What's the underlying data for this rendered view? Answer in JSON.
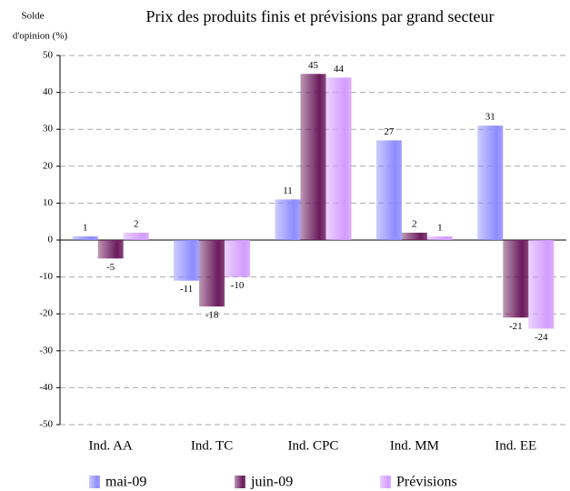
{
  "chart_data": {
    "type": "bar",
    "title": "Prix des produits finis et prévisions par grand secteur",
    "y_axis_label": [
      "Solde",
      "d'opinion (%)"
    ],
    "categories": [
      "Ind. AA",
      "Ind. TC",
      "Ind. CPC",
      "Ind. MM",
      "Ind. EE"
    ],
    "series": [
      {
        "name": "mai-09",
        "color": "#8c8cff",
        "values": [
          1,
          -11,
          11,
          27,
          31
        ]
      },
      {
        "name": "juin-09",
        "color": "#6a1a5c",
        "values": [
          -5,
          -18,
          45,
          2,
          -21
        ]
      },
      {
        "name": "Prévisions",
        "color": "#d39cff",
        "values": [
          2,
          -10,
          44,
          1,
          -24
        ]
      }
    ],
    "ylim": [
      -50,
      50
    ],
    "yticks": [
      -50,
      -40,
      -30,
      -20,
      -10,
      0,
      10,
      20,
      30,
      40,
      50
    ],
    "grid": true,
    "legend": "bottom"
  }
}
